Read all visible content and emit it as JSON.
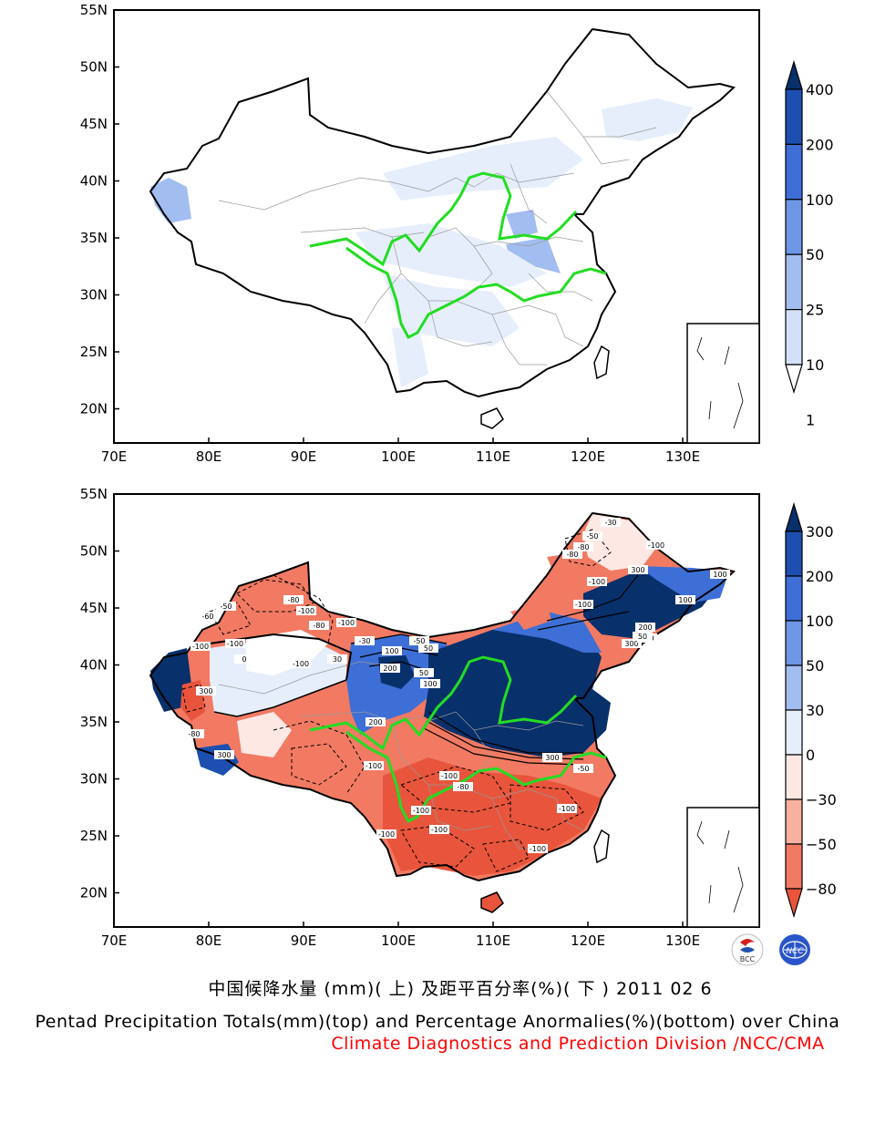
{
  "maps": [
    {
      "id": "top",
      "x_ticks": [
        "70E",
        "80E",
        "90E",
        "100E",
        "110E",
        "120E",
        "130E"
      ],
      "y_ticks": [
        "55N",
        "50N",
        "45N",
        "40N",
        "35N",
        "30N",
        "25N",
        "20N"
      ],
      "colorbar_labels": [
        "400",
        "200",
        "100",
        "50",
        "25",
        "10",
        "1"
      ],
      "colorbar_colors": [
        "#08306b",
        "#1c4fb0",
        "#3d6fd6",
        "#6f97e6",
        "#a2bdf0",
        "#d3e0f8",
        "#ffffff"
      ]
    },
    {
      "id": "bottom",
      "x_ticks": [
        "70E",
        "80E",
        "90E",
        "100E",
        "110E",
        "120E",
        "130E"
      ],
      "y_ticks": [
        "55N",
        "50N",
        "45N",
        "40N",
        "35N",
        "30N",
        "25N",
        "20N"
      ],
      "colorbar_labels": [
        "300",
        "200",
        "100",
        "50",
        "30",
        "0",
        "−30",
        "−50",
        "−80"
      ],
      "colorbar_colors": [
        "#08306b",
        "#1c4fb0",
        "#3d6fd6",
        "#6f97e6",
        "#a2bdf0",
        "#e6eefb",
        "#fde8e4",
        "#f8b1a0",
        "#f27a63",
        "#e8553c"
      ],
      "contour_labels": [
        "-30",
        "-50",
        "-80",
        "-100",
        "-100",
        "-100",
        "-80",
        "-50",
        "-60",
        "-100",
        "-100",
        "-80",
        "-100",
        "-100",
        "-80",
        "-30",
        "-50",
        "-100",
        "0",
        "30",
        "50",
        "100",
        "200",
        "300",
        "300",
        "200",
        "100",
        "50",
        "300",
        "200",
        "100",
        "300",
        "200",
        "50",
        "100",
        "300",
        "-80",
        "-100",
        "-100",
        "-80",
        "-100",
        "-100",
        "-100",
        "-100",
        "-100",
        "-50"
      ]
    }
  ],
  "logos": [
    "BCC",
    "NCC"
  ],
  "captions": {
    "cn": "中国候降水量 (mm)( 上) 及距平百分率(%)( 下 ) 2011 02 6",
    "en": "Pentad Precipitation Totals(mm)(top) and Percentage Anormalies(%)(bottom) over China",
    "division": "Climate Diagnostics and Prediction Division /NCC/CMA"
  }
}
